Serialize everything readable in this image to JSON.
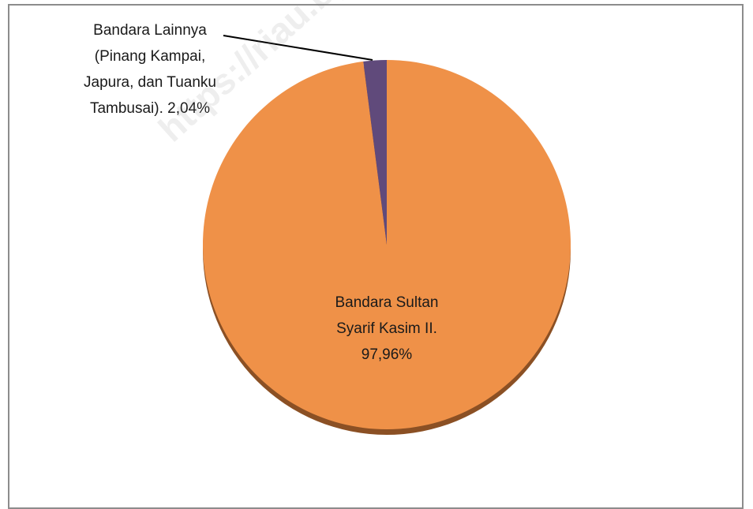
{
  "chart_data": {
    "type": "pie",
    "categories": [
      "Bandara Sultan Syarif Kasim II.",
      "Bandara Lainnya (Pinang Kampai, Japura, dan Tuanku Tambusai)."
    ],
    "values": [
      97.96,
      2.04
    ],
    "value_labels": [
      "97,96%",
      "2,04%"
    ],
    "colors": [
      "#ef9148",
      "#604a7b"
    ],
    "watermark": "https://riau.bps"
  }
}
